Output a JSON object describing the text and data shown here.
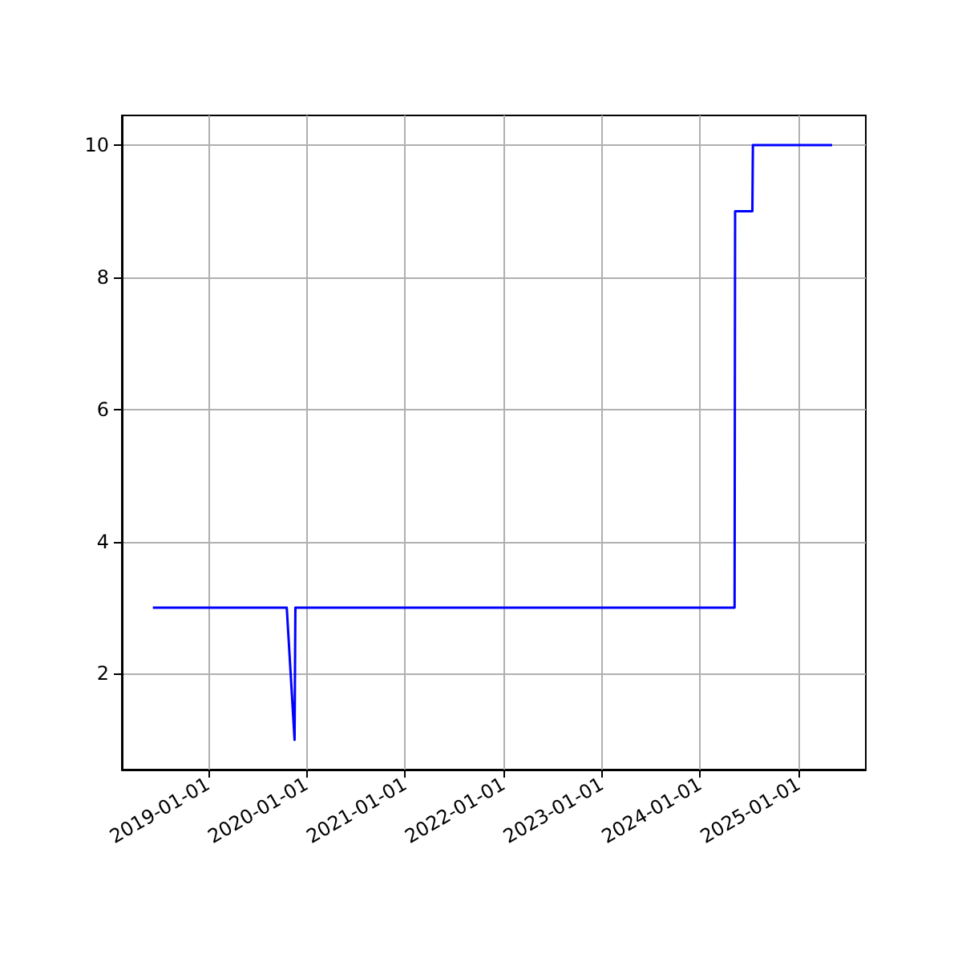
{
  "chart_data": {
    "type": "line",
    "x": [
      "2018-06-10",
      "2019-10-20",
      "2019-11-18",
      "2019-11-21",
      "2024-05-08",
      "2024-05-10",
      "2024-07-13",
      "2024-07-15",
      "2025-05-05"
    ],
    "series": [
      {
        "color": "#0000ff",
        "values": [
          3,
          3,
          1,
          3,
          3,
          9,
          9,
          10,
          10
        ]
      }
    ],
    "xlim": [
      "2018-02-15",
      "2025-09-07"
    ],
    "xticks": [
      {
        "value": "2019-01-01",
        "label": "2019-01-01"
      },
      {
        "value": "2020-01-01",
        "label": "2020-01-01"
      },
      {
        "value": "2021-01-01",
        "label": "2021-01-01"
      },
      {
        "value": "2022-01-01",
        "label": "2022-01-01"
      },
      {
        "value": "2023-01-01",
        "label": "2023-01-01"
      },
      {
        "value": "2024-01-01",
        "label": "2024-01-01"
      },
      {
        "value": "2025-01-01",
        "label": "2025-01-01"
      }
    ],
    "ylim": [
      0.55,
      10.45
    ],
    "yticks": [
      2,
      4,
      6,
      8,
      10
    ],
    "grid": true,
    "marker": "none",
    "line_style": "solid"
  }
}
